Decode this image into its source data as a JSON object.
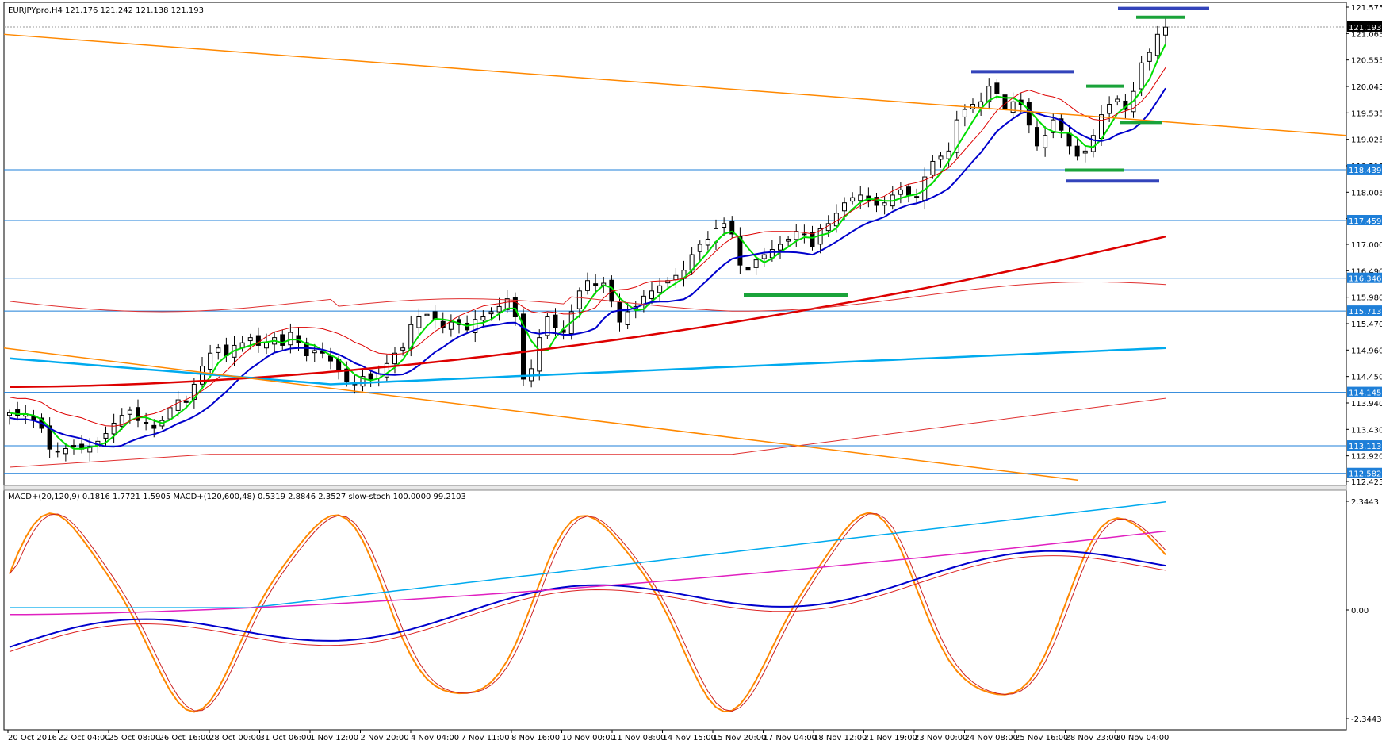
{
  "colors": {
    "background": "#ffffff",
    "grid_border": "#000000",
    "bull_candle": "#ffffff",
    "bear_candle": "#000000",
    "ma_fast": "#00dd00",
    "ma_blue": "#0000cc",
    "ma_red": "#dd0000",
    "ma_cyan": "#00aaee",
    "trendline": "#ff8800",
    "hline": "#1e7fd8",
    "envelope": "#e03030",
    "macd_fast": "#0000cc",
    "macd_slow": "#dd2222",
    "macd_cyan": "#00aaee",
    "macd_magenta": "#e020c0",
    "stoch_k": "#ff8800",
    "stoch_d": "#cc2222",
    "marker_green": "#1aa33a",
    "marker_blue": "#3344bb"
  },
  "main_panel": {
    "header": "EURJPYpro,H4  121.176 121.242 121.138 121.193",
    "current_price": "121.193",
    "price_levels": [
      "121.575",
      "121.065",
      "120.555",
      "120.045",
      "119.535",
      "119.025",
      "118.515",
      "118.005",
      "117.495",
      "117.000",
      "116.490",
      "115.980",
      "115.470",
      "114.960",
      "114.450",
      "113.940",
      "113.430",
      "112.920",
      "112.425"
    ],
    "hline_labels": [
      "118.439",
      "117.459",
      "116.346",
      "115.713",
      "114.145",
      "113.113",
      "112.582"
    ]
  },
  "sub_panel": {
    "header": "MACD+(20,120,9) 0.1816 1.7721 1.5905  MACD+(120,600,48) 0.5319 2.8846 2.3527  slow-stoch 100.0000 99.2103",
    "levels": [
      "2.3443",
      "0.00",
      "-2.3443"
    ]
  },
  "time_axis": [
    "20 Oct 2016",
    "22 Oct 04:00",
    "25 Oct 08:00",
    "26 Oct 16:00",
    "28 Oct 00:00",
    "31 Oct 06:00",
    "1 Nov 12:00",
    "2 Nov 20:00",
    "4 Nov 04:00",
    "7 Nov 11:00",
    "8 Nov 16:00",
    "10 Nov 00:00",
    "11 Nov 08:00",
    "14 Nov 15:00",
    "15 Nov 20:00",
    "17 Nov 04:00",
    "18 Nov 12:00",
    "21 Nov 19:00",
    "23 Nov 00:00",
    "24 Nov 08:00",
    "25 Nov 16:00",
    "28 Nov 23:00",
    "30 Nov 04:00"
  ],
  "chart_data": [
    {
      "type": "candlestick",
      "title": "EURJPYpro,H4",
      "ylim": [
        112.425,
        121.575
      ],
      "price_series": [
        [
          0,
          113.75
        ],
        [
          1,
          113.7
        ],
        [
          2,
          113.73
        ],
        [
          3,
          113.62
        ],
        [
          4,
          113.45
        ],
        [
          5,
          113.05
        ],
        [
          6,
          113.0
        ],
        [
          7,
          113.06
        ],
        [
          8,
          113.12
        ],
        [
          9,
          113.05
        ],
        [
          10,
          113.1
        ],
        [
          11,
          113.2
        ],
        [
          12,
          113.35
        ],
        [
          13,
          113.55
        ],
        [
          14,
          113.7
        ],
        [
          15,
          113.8
        ],
        [
          16,
          113.6
        ],
        [
          17,
          113.55
        ],
        [
          18,
          113.45
        ],
        [
          19,
          113.6
        ],
        [
          20,
          113.85
        ],
        [
          21,
          114.0
        ],
        [
          22,
          113.95
        ],
        [
          23,
          114.3
        ],
        [
          24,
          114.65
        ],
        [
          25,
          114.9
        ],
        [
          26,
          115.0
        ],
        [
          27,
          114.85
        ],
        [
          28,
          115.05
        ],
        [
          29,
          115.1
        ],
        [
          30,
          115.2
        ],
        [
          31,
          115.05
        ],
        [
          32,
          115.1
        ],
        [
          33,
          115.2
        ],
        [
          34,
          115.05
        ],
        [
          35,
          115.3
        ],
        [
          36,
          115.1
        ],
        [
          37,
          114.85
        ],
        [
          38,
          114.95
        ],
        [
          39,
          114.9
        ],
        [
          40,
          114.75
        ],
        [
          41,
          114.55
        ],
        [
          42,
          114.35
        ],
        [
          43,
          114.3
        ],
        [
          44,
          114.45
        ],
        [
          45,
          114.4
        ],
        [
          46,
          114.5
        ],
        [
          47,
          114.7
        ],
        [
          48,
          114.9
        ],
        [
          49,
          115.0
        ],
        [
          50,
          115.45
        ],
        [
          51,
          115.6
        ],
        [
          52,
          115.65
        ],
        [
          53,
          115.55
        ],
        [
          54,
          115.4
        ],
        [
          55,
          115.5
        ],
        [
          56,
          115.45
        ],
        [
          57,
          115.35
        ],
        [
          58,
          115.55
        ],
        [
          59,
          115.6
        ],
        [
          60,
          115.7
        ],
        [
          61,
          115.8
        ],
        [
          62,
          115.95
        ],
        [
          63,
          115.6
        ],
        [
          64,
          114.4
        ],
        [
          65,
          114.6
        ],
        [
          66,
          115.2
        ],
        [
          67,
          115.6
        ],
        [
          68,
          115.4
        ],
        [
          69,
          115.3
        ],
        [
          70,
          115.7
        ],
        [
          71,
          116.1
        ],
        [
          72,
          116.3
        ],
        [
          73,
          116.2
        ],
        [
          74,
          116.25
        ],
        [
          75,
          115.9
        ],
        [
          76,
          115.5
        ],
        [
          77,
          115.7
        ],
        [
          78,
          115.8
        ],
        [
          79,
          116.0
        ],
        [
          80,
          116.1
        ],
        [
          81,
          116.2
        ],
        [
          82,
          116.3
        ],
        [
          83,
          116.4
        ],
        [
          84,
          116.5
        ],
        [
          85,
          116.8
        ],
        [
          86,
          117.0
        ],
        [
          87,
          117.1
        ],
        [
          88,
          117.3
        ],
        [
          89,
          117.4
        ],
        [
          90,
          117.2
        ],
        [
          91,
          116.6
        ],
        [
          92,
          116.5
        ],
        [
          93,
          116.7
        ],
        [
          94,
          116.8
        ],
        [
          95,
          116.9
        ],
        [
          96,
          117.0
        ],
        [
          97,
          117.1
        ],
        [
          98,
          117.25
        ],
        [
          99,
          117.2
        ],
        [
          100,
          116.95
        ],
        [
          101,
          117.3
        ],
        [
          102,
          117.4
        ],
        [
          103,
          117.6
        ],
        [
          104,
          117.8
        ],
        [
          105,
          117.9
        ],
        [
          106,
          117.95
        ],
        [
          107,
          117.85
        ],
        [
          108,
          117.75
        ],
        [
          109,
          117.8
        ],
        [
          110,
          117.95
        ],
        [
          111,
          118.05
        ],
        [
          112,
          117.95
        ],
        [
          113,
          117.9
        ],
        [
          114,
          118.3
        ],
        [
          115,
          118.6
        ],
        [
          116,
          118.7
        ],
        [
          117,
          118.8
        ],
        [
          118,
          119.4
        ],
        [
          119,
          119.6
        ],
        [
          120,
          119.7
        ],
        [
          121,
          119.75
        ],
        [
          122,
          120.05
        ],
        [
          123,
          119.9
        ],
        [
          124,
          119.6
        ],
        [
          125,
          119.75
        ],
        [
          126,
          119.7
        ],
        [
          127,
          119.3
        ],
        [
          128,
          118.9
        ],
        [
          129,
          119.1
        ],
        [
          130,
          119.4
        ],
        [
          131,
          119.2
        ],
        [
          132,
          118.9
        ],
        [
          133,
          118.7
        ],
        [
          134,
          118.8
        ],
        [
          135,
          119.1
        ],
        [
          136,
          119.5
        ],
        [
          137,
          119.7
        ],
        [
          138,
          119.8
        ],
        [
          139,
          119.6
        ],
        [
          140,
          119.95
        ],
        [
          141,
          120.5
        ],
        [
          142,
          120.7
        ],
        [
          143,
          121.05
        ],
        [
          144,
          121.19
        ]
      ]
    },
    {
      "type": "line",
      "title": "MACD+(20,120,9) / MACD+(120,600,48) / slow-stoch",
      "ylim": [
        -2.3443,
        2.3443
      ]
    }
  ]
}
